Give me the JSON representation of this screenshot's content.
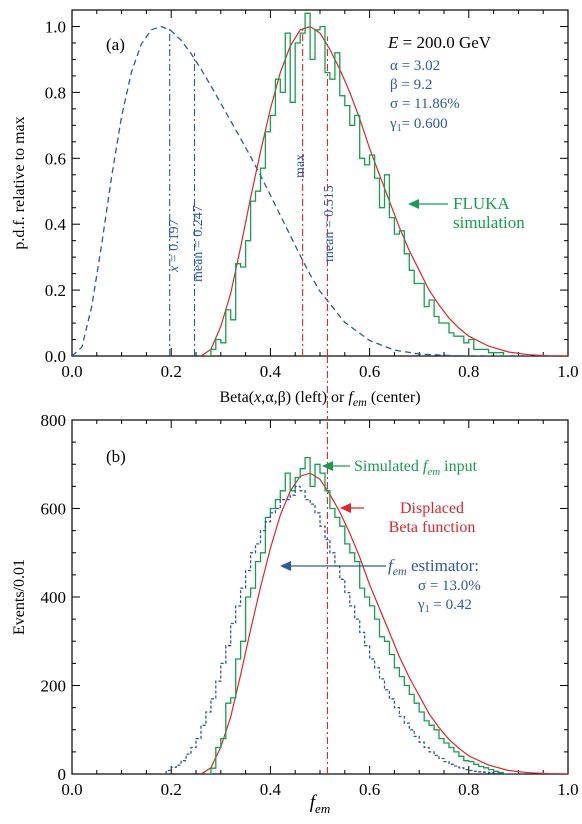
{
  "chart_data": [
    {
      "panel": "(a)",
      "type": "line",
      "xlabel_prefix": "Beta(",
      "xlabel_x": "x",
      "xlabel_mid": ",α,β) (left) or ",
      "xlabel_f": "f",
      "xlabel_sub": "em",
      "xlabel_suffix": " (center)",
      "ylabel": "p.d.f. relative to max",
      "xlim": [
        0.0,
        1.0
      ],
      "ylim": [
        0.0,
        1.05
      ],
      "xticks": [
        "0.0",
        "0.2",
        "0.4",
        "0.6",
        "0.8",
        "1.0"
      ],
      "yticks": [
        "0.0",
        "0.2",
        "0.4",
        "0.6",
        "0.8",
        "1.0"
      ],
      "params": {
        "E_label": "E",
        "E_value": " = 200.0 GeV",
        "alpha": "α =   3.02",
        "beta": "β =   9.2",
        "sigma": "σ = 11.86%",
        "gamma_sym": "γ",
        "gamma_sub": "1",
        "gamma_val": "=   0.600"
      },
      "annotations": {
        "mode_x": "x",
        "mode_val": " = 0.197",
        "mean_left": "mean = 0.247",
        "max_label": "max",
        "mean_right": "mean = 0.515",
        "fluka_line1": "FLUKA",
        "fluka_line2": "simulation"
      },
      "series": [
        {
          "name": "Beta(x,α,β)",
          "style": "dashed",
          "color": "#2a5aa8",
          "x": [
            0.0,
            0.02,
            0.04,
            0.06,
            0.08,
            0.1,
            0.12,
            0.14,
            0.16,
            0.18,
            0.2,
            0.22,
            0.24,
            0.26,
            0.28,
            0.3,
            0.32,
            0.34,
            0.36,
            0.38,
            0.4,
            0.42,
            0.44,
            0.46,
            0.48,
            0.5,
            0.55,
            0.6,
            0.65,
            0.7,
            0.75,
            0.8,
            0.9,
            1.0
          ],
          "y": [
            0.0,
            0.027,
            0.151,
            0.341,
            0.546,
            0.727,
            0.862,
            0.947,
            0.99,
            1.0,
            0.987,
            0.958,
            0.918,
            0.871,
            0.82,
            0.767,
            0.713,
            0.66,
            0.605,
            0.548,
            0.488,
            0.427,
            0.366,
            0.305,
            0.247,
            0.196,
            0.102,
            0.047,
            0.018,
            0.006,
            0.002,
            0.0,
            0.0,
            0.0
          ]
        },
        {
          "name": "Displaced Beta function",
          "style": "solid",
          "color": "#e0262b",
          "x": [
            0.26,
            0.28,
            0.3,
            0.32,
            0.34,
            0.36,
            0.38,
            0.4,
            0.42,
            0.44,
            0.46,
            0.48,
            0.5,
            0.52,
            0.54,
            0.56,
            0.58,
            0.6,
            0.62,
            0.64,
            0.66,
            0.68,
            0.7,
            0.72,
            0.74,
            0.76,
            0.78,
            0.8,
            0.84,
            0.88,
            0.92,
            0.96,
            1.0
          ],
          "y": [
            0.0,
            0.02,
            0.09,
            0.19,
            0.33,
            0.48,
            0.62,
            0.75,
            0.86,
            0.94,
            0.99,
            1.0,
            0.98,
            0.93,
            0.87,
            0.8,
            0.72,
            0.63,
            0.55,
            0.47,
            0.39,
            0.32,
            0.26,
            0.2,
            0.155,
            0.115,
            0.085,
            0.06,
            0.03,
            0.012,
            0.004,
            0.001,
            0.0
          ]
        },
        {
          "name": "FLUKA simulation",
          "style": "step",
          "color": "#14a050",
          "bin_start": 0.27,
          "bin_width": 0.01,
          "y": [
            0.0,
            0.02,
            0.05,
            0.04,
            0.14,
            0.11,
            0.28,
            0.27,
            0.35,
            0.47,
            0.5,
            0.57,
            0.68,
            0.73,
            0.84,
            0.8,
            0.98,
            0.77,
            0.95,
            0.98,
            1.04,
            0.9,
            0.99,
            1.0,
            0.86,
            0.84,
            0.92,
            0.79,
            0.76,
            0.7,
            0.73,
            0.6,
            0.58,
            0.61,
            0.54,
            0.45,
            0.55,
            0.42,
            0.37,
            0.38,
            0.31,
            0.26,
            0.22,
            0.22,
            0.15,
            0.17,
            0.12,
            0.1,
            0.1,
            0.07,
            0.06,
            0.06,
            0.04,
            0.05,
            0.02,
            0.02,
            0.02,
            0.01,
            0.01,
            0.01,
            0.0
          ]
        }
      ],
      "markers": [
        {
          "x": 0.197,
          "y": 1.0,
          "color": "#2a5aa8"
        },
        {
          "x": 0.247,
          "y": 0.92,
          "color": "#2a5aa8"
        },
        {
          "x": 0.465,
          "y": 1.0,
          "color": "#e0262b"
        },
        {
          "x": 0.515,
          "y": 0.97,
          "color": "#e0262b"
        }
      ]
    },
    {
      "panel": "(b)",
      "type": "line",
      "xlabel_f": "f",
      "xlabel_sub": "em",
      "ylabel": "Events/0.01",
      "xlim": [
        0.0,
        1.0
      ],
      "ylim": [
        0,
        800
      ],
      "xticks": [
        "0.0",
        "0.2",
        "0.4",
        "0.6",
        "0.8",
        "1.0"
      ],
      "yticks": [
        "0",
        "200",
        "400",
        "600",
        "800"
      ],
      "annotations": {
        "simulated_pre": "Simulated ",
        "simulated_f": "f",
        "simulated_sub": "em",
        "simulated_post": " input",
        "displaced_line1": "Displaced",
        "displaced_line2": "Beta function",
        "estimator_f": "f",
        "estimator_sub": "em",
        "estimator_post": " estimator:",
        "estimator_sigma": "σ = 13.0%",
        "estimator_gamma_sym": "γ",
        "estimator_gamma_sub": "1",
        "estimator_gamma_val": " = 0.42"
      },
      "series": [
        {
          "name": "Displaced Beta function",
          "style": "solid",
          "color": "#e0262b",
          "x": [
            0.26,
            0.28,
            0.3,
            0.32,
            0.34,
            0.36,
            0.38,
            0.4,
            0.42,
            0.44,
            0.46,
            0.48,
            0.5,
            0.52,
            0.54,
            0.56,
            0.58,
            0.6,
            0.62,
            0.64,
            0.66,
            0.68,
            0.7,
            0.72,
            0.74,
            0.76,
            0.78,
            0.8,
            0.84,
            0.88,
            0.92,
            0.96,
            1.0
          ],
          "y": [
            0,
            14,
            61,
            129,
            224,
            326,
            422,
            510,
            585,
            639,
            673,
            680,
            666,
            632,
            592,
            544,
            490,
            428,
            374,
            320,
            265,
            218,
            177,
            136,
            105,
            78,
            58,
            41,
            20,
            8,
            3,
            1,
            0
          ]
        },
        {
          "name": "Simulated f_em input",
          "style": "step",
          "color": "#14a050",
          "bin_start": 0.27,
          "bin_width": 0.01,
          "y": [
            0,
            13,
            60,
            80,
            160,
            172,
            260,
            300,
            400,
            420,
            480,
            500,
            580,
            600,
            620,
            640,
            680,
            640,
            670,
            690,
            715,
            650,
            700,
            680,
            640,
            600,
            580,
            560,
            520,
            500,
            480,
            420,
            400,
            380,
            350,
            310,
            300,
            270,
            240,
            220,
            200,
            180,
            160,
            140,
            120,
            110,
            100,
            80,
            70,
            60,
            50,
            40,
            30,
            28,
            22,
            17,
            14,
            10,
            6,
            3,
            0
          ]
        },
        {
          "name": "f_em estimator",
          "style": "dashed-step",
          "color": "#2a5aa8",
          "bin_start": 0.18,
          "bin_width": 0.01,
          "y": [
            0,
            8,
            15,
            20,
            30,
            45,
            60,
            80,
            110,
            140,
            170,
            210,
            250,
            290,
            340,
            380,
            420,
            460,
            500,
            520,
            550,
            570,
            590,
            600,
            620,
            620,
            630,
            650,
            640,
            620,
            610,
            590,
            560,
            530,
            500,
            470,
            440,
            410,
            380,
            350,
            320,
            290,
            260,
            240,
            215,
            190,
            170,
            150,
            130,
            115,
            100,
            85,
            72,
            60,
            50,
            42,
            35,
            28,
            22,
            18,
            14,
            10,
            8,
            6,
            5,
            4,
            3,
            2,
            1,
            0,
            0,
            0,
            0
          ]
        }
      ],
      "markers": [
        {
          "x": 0.515,
          "color": "#e0262b"
        }
      ]
    }
  ]
}
